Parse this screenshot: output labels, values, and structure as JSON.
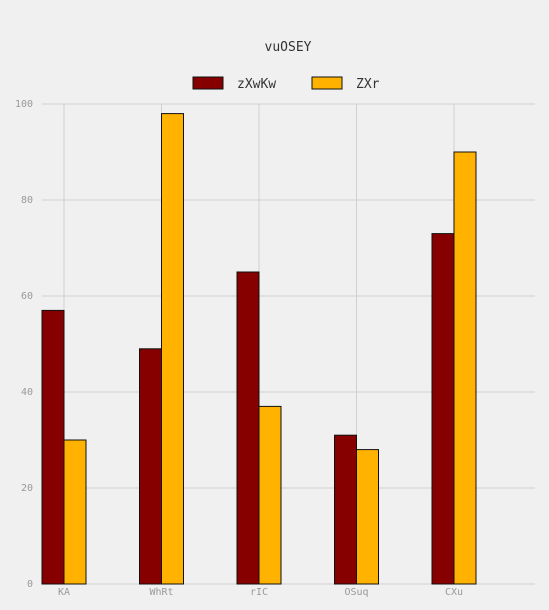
{
  "chart_data": {
    "type": "bar",
    "title": "vuOSEY",
    "xlabel": "",
    "ylabel": "",
    "categories": [
      "KA",
      "WhRt",
      "rIC",
      "OSuq",
      "CXu"
    ],
    "series": [
      {
        "name": "zXwKw",
        "color": "#870000",
        "values": [
          57,
          49,
          65,
          31,
          73
        ]
      },
      {
        "name": "ZXr",
        "color": "#ffb300",
        "values": [
          30,
          98,
          37,
          28,
          90
        ]
      }
    ],
    "ylim": [
      0,
      100
    ],
    "yticks": [
      0,
      20,
      40,
      60,
      80,
      100
    ],
    "grid": true,
    "legend_position": "top"
  }
}
